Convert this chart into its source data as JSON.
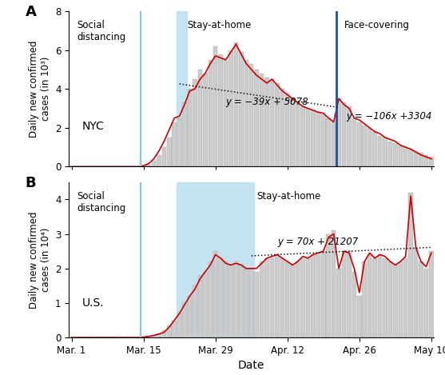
{
  "label_A": "NYC",
  "label_B": "U.S.",
  "ylabel_A": "Daily new confirmed\ncases (in 10³)",
  "ylabel_B": "Daily new confirmed\ncases (in 10⁴)",
  "xlabel": "Date",
  "ylim_A": [
    0,
    8
  ],
  "ylim_B": [
    0,
    4.5
  ],
  "yticks_A": [
    0,
    2,
    4,
    6,
    8
  ],
  "yticks_B": [
    0,
    1,
    2,
    3,
    4
  ],
  "xtick_labels": [
    "Mar. 1",
    "Mar. 15",
    "Mar. 29",
    "Apr. 12",
    "Apr. 26",
    "May 10"
  ],
  "xtick_positions": [
    0,
    14,
    28,
    42,
    56,
    70
  ],
  "n_days": 71,
  "social_dist_line_A": 14,
  "stay_home_line_A": 21,
  "face_cover_line_A": 52,
  "social_dist_line_B": 14,
  "stay_home_start_B": 21,
  "stay_home_end_B": 35,
  "nyc_bars": [
    0,
    0,
    0,
    0,
    0,
    0,
    0,
    0,
    0,
    0,
    0,
    0,
    0,
    0,
    0.05,
    0.1,
    0.3,
    0.6,
    1.0,
    1.5,
    2.3,
    2.5,
    3.3,
    4.0,
    4.5,
    5.0,
    4.8,
    5.5,
    6.2,
    5.8,
    5.5,
    6.0,
    6.4,
    5.9,
    5.5,
    5.3,
    5.0,
    4.8,
    4.6,
    4.5,
    4.3,
    4.0,
    3.8,
    3.5,
    3.3,
    3.1,
    3.0,
    2.9,
    2.8,
    2.7,
    2.5,
    2.3,
    3.5,
    3.3,
    3.1,
    2.5,
    2.3,
    2.1,
    2.0,
    1.8,
    1.6,
    1.5,
    1.3,
    1.2,
    1.1,
    1.0,
    0.9,
    0.8,
    0.7,
    0.6,
    0.5
  ],
  "nyc_line": [
    0,
    0,
    0,
    0,
    0,
    0,
    0,
    0,
    0,
    0,
    0,
    0,
    0,
    0,
    0.05,
    0.15,
    0.4,
    0.8,
    1.3,
    1.9,
    2.5,
    2.6,
    3.2,
    3.9,
    4.0,
    4.5,
    4.8,
    5.3,
    5.7,
    5.6,
    5.5,
    5.9,
    6.3,
    5.8,
    5.3,
    5.0,
    4.7,
    4.5,
    4.3,
    4.5,
    4.2,
    3.9,
    3.7,
    3.5,
    3.3,
    3.1,
    3.0,
    2.9,
    2.8,
    2.75,
    2.5,
    2.3,
    3.5,
    3.2,
    3.0,
    2.5,
    2.4,
    2.2,
    2.0,
    1.8,
    1.7,
    1.5,
    1.4,
    1.3,
    1.1,
    1.0,
    0.9,
    0.75,
    0.6,
    0.5,
    0.4
  ],
  "us_bars": [
    0,
    0,
    0,
    0,
    0,
    0,
    0,
    0,
    0,
    0,
    0,
    0,
    0,
    0,
    0.02,
    0.05,
    0.08,
    0.12,
    0.2,
    0.35,
    0.5,
    0.7,
    1.0,
    1.2,
    1.5,
    1.8,
    1.9,
    2.2,
    2.5,
    2.3,
    2.2,
    2.1,
    2.2,
    2.1,
    2.0,
    2.0,
    1.9,
    2.2,
    2.3,
    2.3,
    2.4,
    2.3,
    2.2,
    2.1,
    2.2,
    2.3,
    2.3,
    2.4,
    2.4,
    2.5,
    3.0,
    3.1,
    2.0,
    2.5,
    2.5,
    1.9,
    1.2,
    2.2,
    2.4,
    2.3,
    2.4,
    2.3,
    2.2,
    2.1,
    2.2,
    2.3,
    4.2,
    2.6,
    2.2,
    2.0,
    2.5
  ],
  "us_line": [
    0,
    0,
    0,
    0,
    0,
    0,
    0,
    0,
    0,
    0,
    0,
    0,
    0,
    0,
    0.01,
    0.03,
    0.06,
    0.1,
    0.15,
    0.3,
    0.5,
    0.7,
    0.95,
    1.2,
    1.4,
    1.7,
    1.9,
    2.1,
    2.4,
    2.3,
    2.15,
    2.1,
    2.15,
    2.1,
    2.0,
    2.0,
    2.0,
    2.15,
    2.3,
    2.35,
    2.4,
    2.3,
    2.2,
    2.1,
    2.2,
    2.35,
    2.3,
    2.4,
    2.45,
    2.5,
    2.9,
    3.0,
    2.0,
    2.5,
    2.45,
    2.0,
    1.3,
    2.2,
    2.45,
    2.3,
    2.4,
    2.35,
    2.2,
    2.1,
    2.2,
    2.35,
    4.1,
    2.6,
    2.2,
    2.05,
    2.45
  ],
  "nyc_trend1_start": 21,
  "nyc_trend1_end": 52,
  "nyc_trend1_slope": -39,
  "nyc_trend1_intercept": 5078,
  "nyc_trend1_label": "y = −39x + 5078",
  "nyc_trend2_start": 52,
  "nyc_trend2_end": 70,
  "nyc_trend2_slope": -106,
  "nyc_trend2_intercept": 3304,
  "nyc_trend2_label": "y = −106x +3304",
  "us_trend_start": 35,
  "us_trend_end": 70,
  "us_trend_slope": 70,
  "us_trend_intercept": 21207,
  "us_trend_label": "y = 70x + 21207",
  "bar_color": "#cccccc",
  "bar_edge_color": "#aaaaaa",
  "line_color": "#cc0000",
  "trend1_color": "#111111",
  "trend2_color": "#0000bb",
  "vline_light_color": "#7ec8e3",
  "vline_dark_color": "#1a52a0",
  "shade_color": "#bde0f0",
  "annotation_fontsize": 8.5,
  "label_fontsize": 10,
  "tick_fontsize": 8.5,
  "ylabel_fontsize": 8.5
}
